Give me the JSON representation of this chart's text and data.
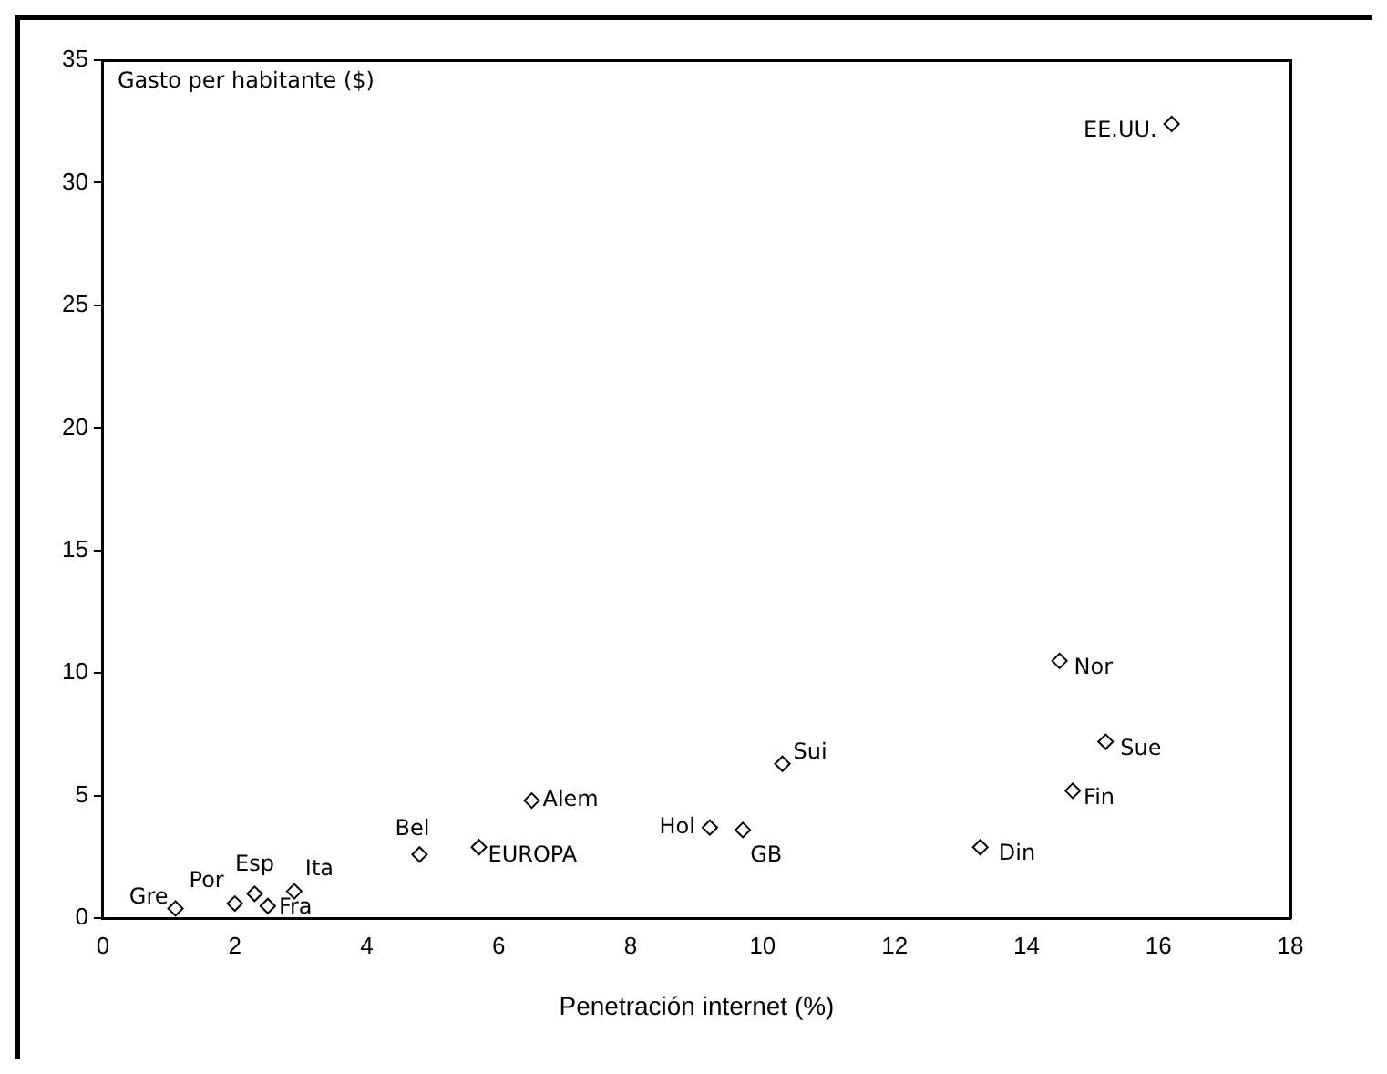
{
  "chart_data": {
    "type": "scatter",
    "ylabel": "Gasto per habitante ($)",
    "xlabel": "Penetración internet (%)",
    "series": [
      {
        "name": "EE.UU.",
        "color": "#000000",
        "x": [
          16.2
        ],
        "values": [
          32.4
        ]
      },
      {
        "name": "Nor",
        "color": "#000000",
        "x": [
          14.5
        ],
        "values": [
          10.5
        ]
      },
      {
        "name": "Sue",
        "color": "#000000",
        "x": [
          15.2
        ],
        "values": [
          7.2
        ]
      },
      {
        "name": "Fin",
        "color": "#000000",
        "x": [
          14.7
        ],
        "values": [
          5.2
        ]
      },
      {
        "name": "Din",
        "color": "#000000",
        "x": [
          13.3
        ],
        "values": [
          2.9
        ]
      },
      {
        "name": "Sui",
        "color": "#000000",
        "x": [
          10.3
        ],
        "values": [
          6.3
        ]
      },
      {
        "name": "Hol",
        "color": "#000000",
        "x": [
          9.2
        ],
        "values": [
          3.7
        ]
      },
      {
        "name": "GB",
        "color": "#000000",
        "x": [
          9.7
        ],
        "values": [
          3.6
        ]
      },
      {
        "name": "Alem",
        "color": "#000000",
        "x": [
          6.5
        ],
        "values": [
          4.8
        ]
      },
      {
        "name": "EUROPA",
        "color": "#000000",
        "x": [
          5.7
        ],
        "values": [
          2.9
        ]
      },
      {
        "name": "Bel",
        "color": "#000000",
        "x": [
          4.8
        ],
        "values": [
          2.6
        ]
      },
      {
        "name": "Ita",
        "color": "#000000",
        "x": [
          2.9
        ],
        "values": [
          1.1
        ]
      },
      {
        "name": "Fra",
        "color": "#000000",
        "x": [
          2.5
        ],
        "values": [
          0.5
        ]
      },
      {
        "name": "Esp",
        "color": "#000000",
        "x": [
          2.3
        ],
        "values": [
          1.0
        ]
      },
      {
        "name": "Por",
        "color": "#000000",
        "x": [
          2.0
        ],
        "values": [
          0.6
        ]
      },
      {
        "name": "Gre",
        "color": "#000000",
        "x": [
          1.1
        ],
        "values": [
          0.4
        ]
      }
    ],
    "xlim": [
      0,
      18
    ],
    "xticks": [
      0,
      2,
      4,
      6,
      8,
      10,
      12,
      14,
      16,
      18
    ],
    "ylim": [
      0,
      35
    ],
    "yticks": [
      0,
      5,
      10,
      15,
      20,
      25,
      30,
      35
    ],
    "grid": false,
    "legend": false,
    "marker": "diamond"
  }
}
